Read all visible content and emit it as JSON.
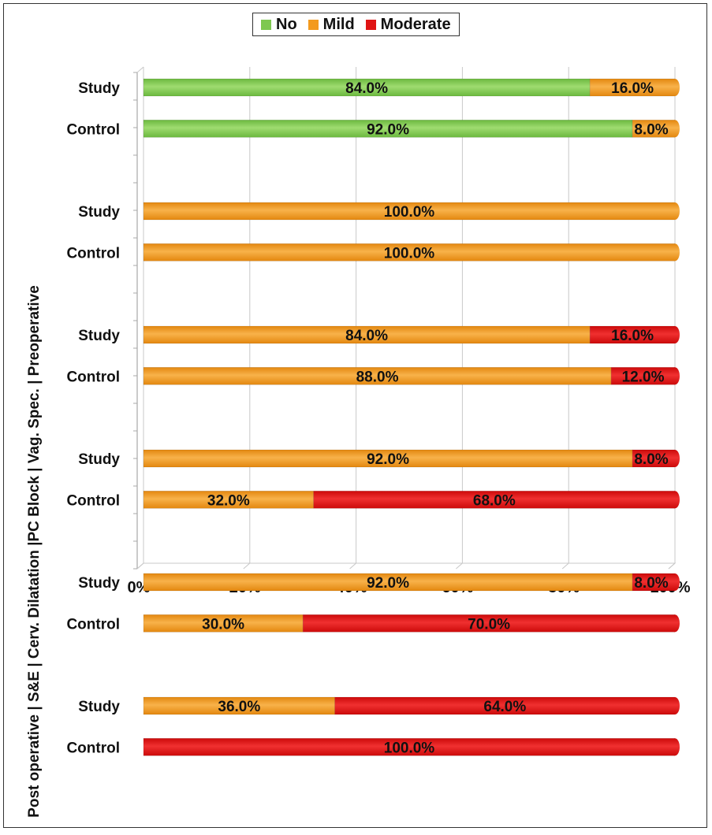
{
  "chart_data": {
    "type": "bar",
    "orientation": "horizontal",
    "stacked": true,
    "normalized_percent": true,
    "ylabel": "Post operative | S&E | Cerv. Dilatation |PC Block | Vag. Spec. | Preoperative",
    "xlim": [
      0,
      100
    ],
    "x_ticks": [
      "0%",
      "20%",
      "40%",
      "60%",
      "80%",
      "100%"
    ],
    "grid": "vertical",
    "legend_position": "top",
    "series_names": [
      "No",
      "Mild",
      "Moderate"
    ],
    "series_colors": {
      "No": "#7ec850",
      "Mild": "#f39a1e",
      "Moderate": "#e01414"
    },
    "groups": [
      {
        "rows": [
          {
            "label": "Study",
            "values": {
              "No": 84.0,
              "Mild": 16.0,
              "Moderate": 0
            },
            "labels": {
              "No": "84.0%",
              "Mild": "16.0%"
            }
          },
          {
            "label": "Control",
            "values": {
              "No": 92.0,
              "Mild": 8.0,
              "Moderate": 0
            },
            "labels": {
              "No": "92.0%",
              "Mild": "8.0%"
            }
          }
        ]
      },
      {
        "rows": [
          {
            "label": "Study",
            "values": {
              "No": 0,
              "Mild": 100.0,
              "Moderate": 0
            },
            "labels": {
              "Mild": "100.0%"
            }
          },
          {
            "label": "Control",
            "values": {
              "No": 0,
              "Mild": 100.0,
              "Moderate": 0
            },
            "labels": {
              "Mild": "100.0%"
            }
          }
        ]
      },
      {
        "rows": [
          {
            "label": "Study",
            "values": {
              "No": 0,
              "Mild": 84.0,
              "Moderate": 16.0
            },
            "labels": {
              "Mild": "84.0%",
              "Moderate": "16.0%"
            }
          },
          {
            "label": "Control",
            "values": {
              "No": 0,
              "Mild": 88.0,
              "Moderate": 12.0
            },
            "labels": {
              "Mild": "88.0%",
              "Moderate": "12.0%"
            }
          }
        ]
      },
      {
        "rows": [
          {
            "label": "Study",
            "values": {
              "No": 0,
              "Mild": 92.0,
              "Moderate": 8.0
            },
            "labels": {
              "Mild": "92.0%",
              "Moderate": "8.0%"
            }
          },
          {
            "label": "Control",
            "values": {
              "No": 0,
              "Mild": 32.0,
              "Moderate": 68.0
            },
            "labels": {
              "Mild": "32.0%",
              "Moderate": "68.0%"
            }
          }
        ]
      },
      {
        "rows": [
          {
            "label": "Study",
            "values": {
              "No": 0,
              "Mild": 92.0,
              "Moderate": 8.0
            },
            "labels": {
              "Mild": "92.0%",
              "Moderate": "8.0%"
            }
          },
          {
            "label": "Control",
            "values": {
              "No": 0,
              "Mild": 30.0,
              "Moderate": 70.0
            },
            "labels": {
              "Mild": "30.0%",
              "Moderate": "70.0%"
            }
          }
        ]
      },
      {
        "rows": [
          {
            "label": "Study",
            "values": {
              "No": 0,
              "Mild": 36.0,
              "Moderate": 64.0
            },
            "labels": {
              "Mild": "36.0%",
              "Moderate": "64.0%"
            }
          },
          {
            "label": "Control",
            "values": {
              "No": 0,
              "Mild": 0,
              "Moderate": 100.0
            },
            "labels": {
              "Moderate": "100.0%"
            }
          }
        ]
      }
    ]
  }
}
